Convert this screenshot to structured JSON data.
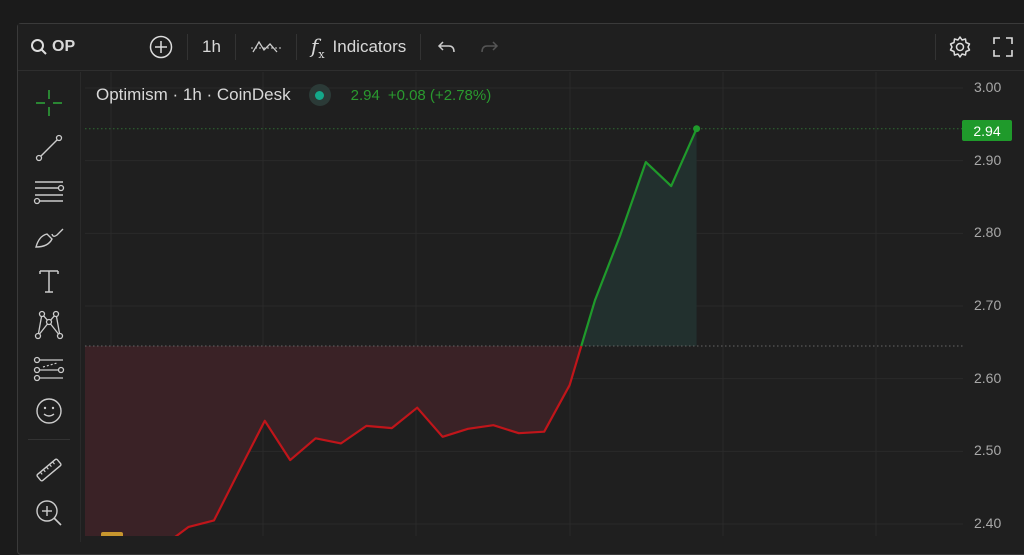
{
  "toolbar": {
    "symbol": "OP",
    "interval": "1h",
    "indicators_label": "Indicators"
  },
  "legend": {
    "title": "Optimism · 1h · CoinDesk",
    "price": "2.94",
    "change": "+0.08 (+2.78%)",
    "status_color": "#14a88a"
  },
  "colors": {
    "up": "#1f9a2b",
    "down": "#c0151a",
    "crosshair": "#2fa83a"
  },
  "sidebar": {
    "tools": [
      "crosshair-icon",
      "trend-line-icon",
      "horizontal-lines-icon",
      "brush-icon",
      "text-icon",
      "pattern-icon",
      "forecast-icon",
      "emoji-icon",
      "ruler-icon",
      "zoom-in-icon"
    ]
  },
  "chart_data": {
    "type": "line",
    "ylim": [
      2.383,
      3.03
    ],
    "y_ticks": [
      "3.00",
      "2.90",
      "2.80",
      "2.70",
      "2.60",
      "2.50",
      "2.40"
    ],
    "baseline": 2.645,
    "last_price_label": "2.94",
    "values": [
      2.37,
      2.36,
      2.35,
      2.37,
      2.396,
      2.405,
      2.474,
      2.542,
      2.488,
      2.518,
      2.511,
      2.535,
      2.532,
      2.56,
      2.52,
      2.531,
      2.536,
      2.525,
      2.527,
      2.591,
      2.708,
      2.798,
      2.898,
      2.865,
      2.944
    ],
    "grid": true
  }
}
